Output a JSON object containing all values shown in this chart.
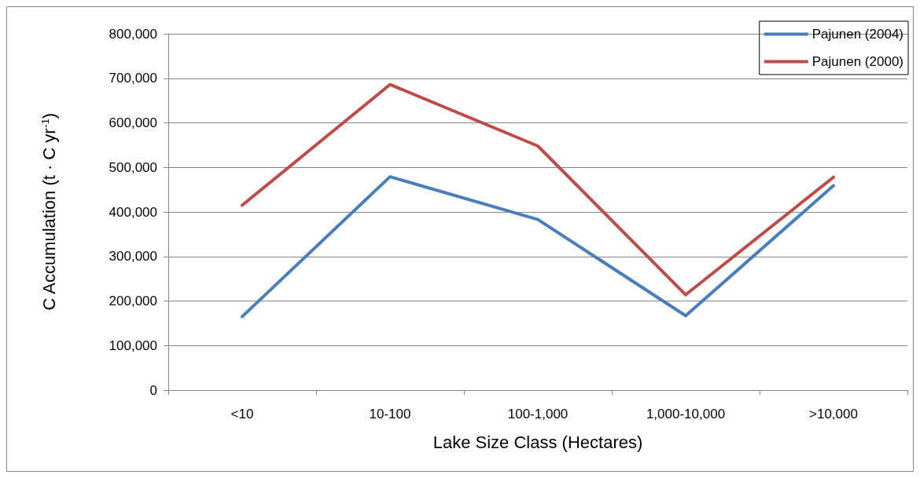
{
  "chart_data": {
    "type": "line",
    "xlabel": "Lake Size Class (Hectares)",
    "ylabel": "C Accumulation (t · C yr$^{-1}$)",
    "categories": [
      "<10",
      "10-100",
      "100-1,000",
      "1,000-10,000",
      ">10,000"
    ],
    "series": [
      {
        "name": "Pajunen (2004)",
        "color": "#4a7ebb",
        "values": [
          165000,
          479000,
          383000,
          167000,
          459000
        ]
      },
      {
        "name": "Pajunen (2000)",
        "color": "#be4b48",
        "values": [
          415000,
          686000,
          548000,
          214000,
          478000
        ]
      }
    ],
    "ylim": [
      0,
      800000
    ],
    "yticks": [
      {
        "value": 0,
        "label": "0"
      },
      {
        "value": 100000,
        "label": "100,000"
      },
      {
        "value": 200000,
        "label": "200,000"
      },
      {
        "value": 300000,
        "label": "300,000"
      },
      {
        "value": 400000,
        "label": "400,000"
      },
      {
        "value": 500000,
        "label": "500,000"
      },
      {
        "value": 600000,
        "label": "600,000"
      },
      {
        "value": 700000,
        "label": "700,000"
      },
      {
        "value": 800000,
        "label": "800,000"
      }
    ],
    "grid": "y",
    "legend": "top right",
    "marker": "none",
    "line_style": "solid"
  }
}
